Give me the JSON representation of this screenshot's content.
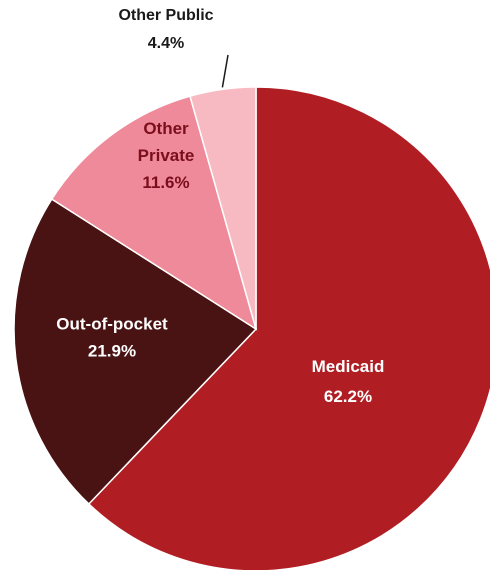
{
  "chart_data": {
    "type": "pie",
    "title": "",
    "slices": [
      {
        "key": "medicaid",
        "label": "Medicaid",
        "value": 62.2,
        "value_label": "62.2%",
        "color": "#B01E24",
        "label_color": "#ffffff"
      },
      {
        "key": "out-of-pocket",
        "label": "Out-of-pocket",
        "value": 21.9,
        "value_label": "21.9%",
        "color": "#4A1313",
        "label_color": "#ffffff"
      },
      {
        "key": "other-private",
        "label": "Other Private",
        "label_lines": [
          "Other",
          "Private"
        ],
        "value": 11.6,
        "value_label": "11.6%",
        "color": "#EF8A9A",
        "label_color": "#7A0E1C"
      },
      {
        "key": "other-public",
        "label": "Other Public",
        "value": 4.4,
        "value_label": "4.4%",
        "color": "#F8BAC2",
        "label_color": "#1a1a1a"
      }
    ],
    "legend": "none",
    "slice_edge_color": "#ffffff"
  }
}
